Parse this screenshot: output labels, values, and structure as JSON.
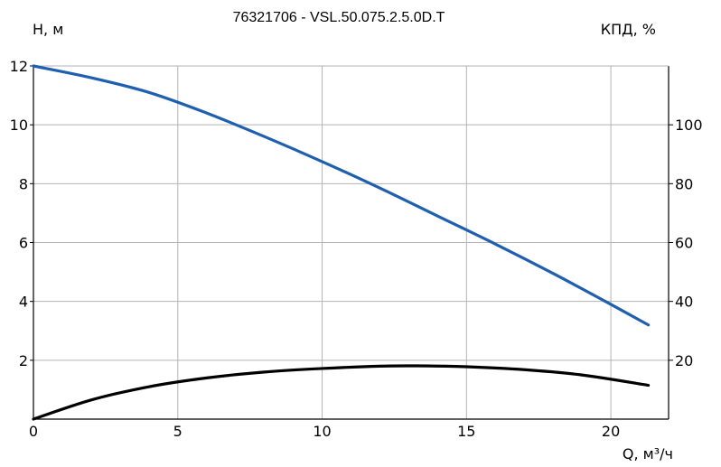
{
  "chart_data": {
    "type": "line",
    "title": "76321706 - VSL.50.075.2.5.0D.T",
    "ylabel": "H, м",
    "y2label": "КПД, %",
    "xlabel": "Q, м³/ч",
    "xlim": [
      0,
      22
    ],
    "ylim": [
      0,
      12
    ],
    "y2lim": [
      0,
      120
    ],
    "x_ticks": [
      "0",
      "5",
      "10",
      "15",
      "20"
    ],
    "y_ticks": [
      "2",
      "4",
      "6",
      "8",
      "10",
      "12"
    ],
    "y2_ticks": [
      "20",
      "40",
      "60",
      "80",
      "100"
    ],
    "grid": true,
    "series": [
      {
        "axis": "left",
        "color": "#1f5fb0",
        "points": [
          [
            0,
            12.0
          ],
          [
            2,
            11.6
          ],
          [
            4,
            11.1
          ],
          [
            6,
            10.4
          ],
          [
            8,
            9.6
          ],
          [
            10,
            8.75
          ],
          [
            12,
            7.85
          ],
          [
            14,
            6.9
          ],
          [
            16,
            5.95
          ],
          [
            18,
            4.95
          ],
          [
            20,
            3.9
          ],
          [
            21.3,
            3.2
          ]
        ]
      },
      {
        "axis": "right",
        "color": "#000000",
        "points": [
          [
            0,
            0
          ],
          [
            2,
            6.5
          ],
          [
            4,
            11
          ],
          [
            6,
            14
          ],
          [
            8,
            16
          ],
          [
            10,
            17.2
          ],
          [
            12,
            18
          ],
          [
            13.3,
            18.1
          ],
          [
            15,
            17.8
          ],
          [
            17,
            16.8
          ],
          [
            19,
            15
          ],
          [
            21.3,
            11.5
          ]
        ]
      }
    ]
  }
}
